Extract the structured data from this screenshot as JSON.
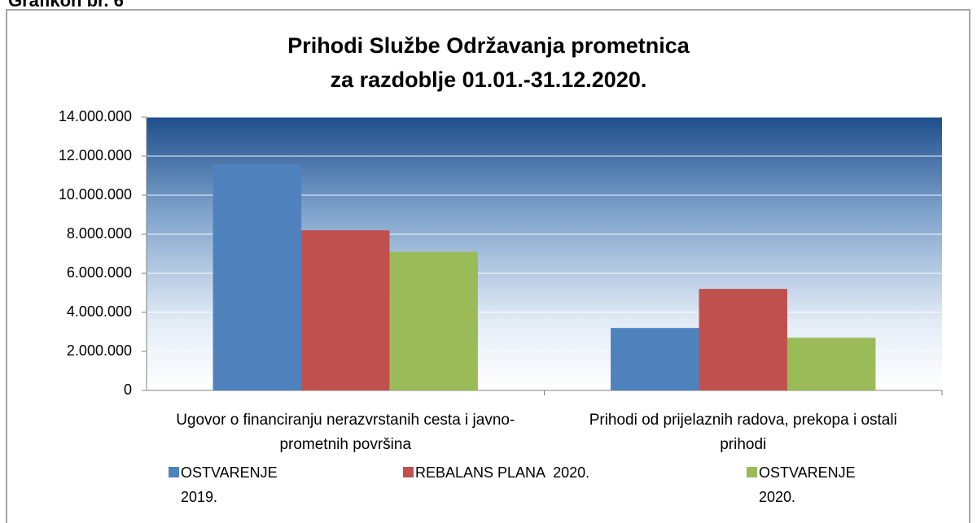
{
  "caption": "Grafikon br. 6",
  "chart_data": {
    "type": "bar",
    "title": "Prihodi Službe Održavanja prometnica",
    "subtitle": "za razdoblje 01.01.-31.12.2020.",
    "categories": [
      "Ugovor o financiranju nerazvrstanih cesta i javno-prometnih površina",
      "Prihodi od prijelaznih radova, prekopa i ostali prihodi"
    ],
    "series": [
      {
        "name": "OSTVARENJE 2019.",
        "color": "#4f81bd",
        "values": [
          11600000,
          3200000
        ]
      },
      {
        "name": "REBALANS PLANA  2020.",
        "color": "#c0504d",
        "values": [
          8200000,
          5200000
        ]
      },
      {
        "name": "OSTVARENJE 2020.",
        "color": "#9bbb59",
        "values": [
          7100000,
          2700000
        ]
      }
    ],
    "ylim": [
      0,
      14000000
    ],
    "yticks": [
      0,
      {
        "value": 2000000,
        "label": "2.000.000"
      },
      {
        "value": 4000000,
        "label": "4.000.000"
      },
      {
        "value": 6000000,
        "label": "6.000.000"
      },
      {
        "value": 8000000,
        "label": "8.000.000"
      },
      {
        "value": 10000000,
        "label": "10.000.000"
      },
      {
        "value": 12000000,
        "label": "12.000.000"
      },
      {
        "value": 14000000,
        "label": "14.000.000"
      }
    ],
    "grid": true,
    "legend": "bottom"
  }
}
